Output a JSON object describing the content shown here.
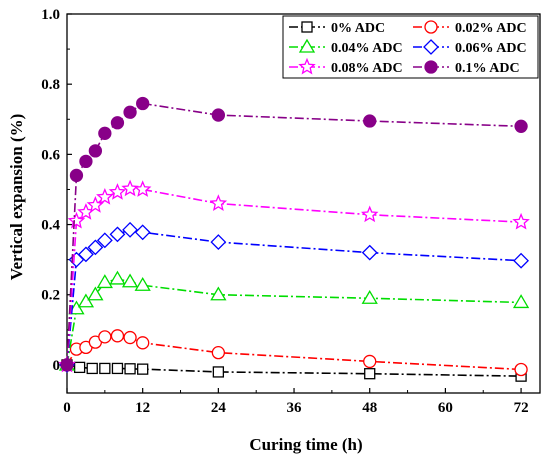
{
  "chart_data": {
    "type": "line",
    "xlabel": "Curing time (h)",
    "ylabel": "Vertical expansion (%)",
    "xlim": [
      0,
      75
    ],
    "ylim": [
      -0.08,
      1.0
    ],
    "xticks": [
      "0",
      "12",
      "24",
      "36",
      "48",
      "60",
      "72"
    ],
    "yticks": [
      "0",
      "0.2",
      "0.4",
      "0.6",
      "0.8",
      "1.0"
    ],
    "legend_placement": "top-right",
    "grid": false,
    "series": [
      {
        "name": "0% ADC",
        "color": "#000000",
        "marker": "square",
        "filled": false,
        "x": [
          0,
          2,
          4,
          6,
          8,
          10,
          12,
          24,
          48,
          72
        ],
        "y": [
          0,
          -0.007,
          -0.01,
          -0.01,
          -0.01,
          -0.011,
          -0.012,
          -0.02,
          -0.025,
          -0.032
        ]
      },
      {
        "name": "0.02% ADC",
        "color": "#ff0000",
        "marker": "circle",
        "filled": false,
        "x": [
          0,
          1.5,
          3,
          4.5,
          6,
          8,
          10,
          12,
          24,
          48,
          72
        ],
        "y": [
          0,
          0.045,
          0.05,
          0.065,
          0.08,
          0.083,
          0.078,
          0.063,
          0.035,
          0.01,
          -0.013
        ]
      },
      {
        "name": "0.04% ADC",
        "color": "#00dd00",
        "marker": "triangle",
        "filled": false,
        "x": [
          0,
          1.5,
          3,
          4.5,
          6,
          8,
          10,
          12,
          24,
          48,
          72
        ],
        "y": [
          0,
          0.16,
          0.18,
          0.2,
          0.235,
          0.245,
          0.237,
          0.227,
          0.2,
          0.19,
          0.178
        ]
      },
      {
        "name": "0.06% ADC",
        "color": "#0000ff",
        "marker": "diamond",
        "filled": false,
        "x": [
          0,
          1.5,
          3,
          4.5,
          6,
          8,
          10,
          12,
          24,
          48,
          72
        ],
        "y": [
          0,
          0.3,
          0.315,
          0.335,
          0.355,
          0.372,
          0.385,
          0.378,
          0.35,
          0.32,
          0.297
        ]
      },
      {
        "name": "0.08% ADC",
        "color": "#ff00ff",
        "marker": "star",
        "filled": false,
        "x": [
          0,
          1.5,
          3,
          4.5,
          6,
          8,
          10,
          12,
          24,
          48,
          72
        ],
        "y": [
          0,
          0.41,
          0.435,
          0.455,
          0.478,
          0.492,
          0.502,
          0.5,
          0.46,
          0.428,
          0.407
        ]
      },
      {
        "name": "0.1% ADC",
        "color": "#880088",
        "marker": "circle",
        "filled": true,
        "x": [
          0,
          1.5,
          3,
          4.5,
          6,
          8,
          10,
          12,
          24,
          48,
          72
        ],
        "y": [
          0,
          0.54,
          0.58,
          0.61,
          0.66,
          0.69,
          0.72,
          0.745,
          0.712,
          0.695,
          0.68
        ]
      }
    ]
  }
}
